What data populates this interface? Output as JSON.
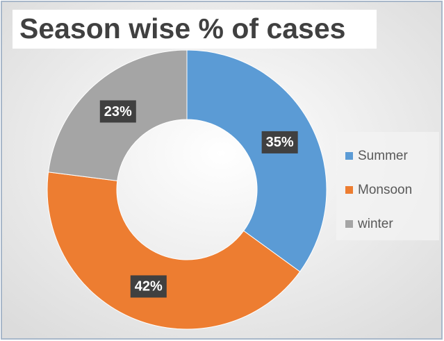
{
  "chart_data": {
    "type": "donut",
    "title": "Season wise % of cases",
    "categories": [
      "Summer",
      "Monsoon",
      "winter"
    ],
    "values": [
      35,
      42,
      23
    ],
    "value_labels": [
      "35%",
      "42%",
      "23%"
    ],
    "colors": [
      "#5b9bd5",
      "#ed7d31",
      "#a5a5a5"
    ],
    "legend": "right"
  }
}
